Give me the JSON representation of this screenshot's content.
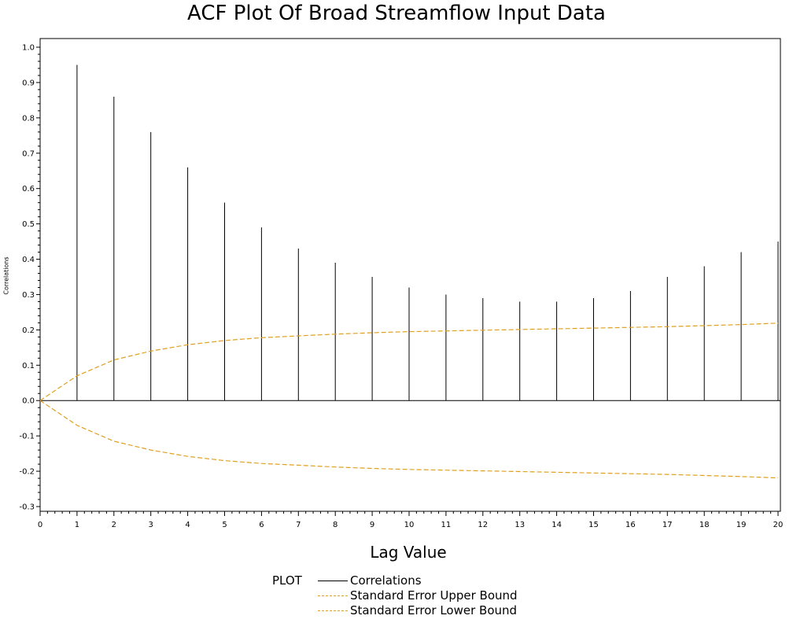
{
  "chart_data": {
    "type": "bar",
    "title": "ACF Plot Of Broad Streamflow Input Data",
    "xlabel": "Lag Value",
    "ylabel": "Correlations",
    "xlim": [
      0,
      20
    ],
    "ylim": [
      -0.3,
      1.0
    ],
    "x_ticks": [
      "0",
      "1",
      "2",
      "3",
      "4",
      "5",
      "6",
      "7",
      "8",
      "9",
      "10",
      "11",
      "12",
      "13",
      "14",
      "15",
      "16",
      "17",
      "18",
      "19",
      "20"
    ],
    "y_ticks": [
      "-0.3",
      "-0.2",
      "-0.1",
      "0.0",
      "0.1",
      "0.2",
      "0.3",
      "0.4",
      "0.5",
      "0.6",
      "0.7",
      "0.8",
      "0.9",
      "1.0"
    ],
    "grid": false,
    "legend": {
      "title": "PLOT",
      "placement": "bottom",
      "entries": [
        "Correlations",
        "Standard Error Upper Bound",
        "Standard Error Lower Bound"
      ]
    },
    "colors": {
      "correlations": "#000000",
      "bounds": "#e0a020"
    },
    "series": [
      {
        "name": "Correlations",
        "x": [
          1,
          2,
          3,
          4,
          5,
          6,
          7,
          8,
          9,
          10,
          11,
          12,
          13,
          14,
          15,
          16,
          17,
          18,
          19,
          20
        ],
        "values": [
          0.95,
          0.86,
          0.76,
          0.66,
          0.56,
          0.49,
          0.43,
          0.39,
          0.35,
          0.32,
          0.3,
          0.29,
          0.28,
          0.28,
          0.29,
          0.31,
          0.35,
          0.38,
          0.42,
          0.45
        ]
      },
      {
        "name": "Standard Error Upper Bound",
        "x": [
          0,
          1,
          2,
          3,
          4,
          5,
          6,
          7,
          8,
          9,
          10,
          11,
          12,
          13,
          14,
          15,
          16,
          17,
          18,
          19,
          20
        ],
        "values": [
          0.0,
          0.07,
          0.115,
          0.14,
          0.158,
          0.17,
          0.178,
          0.183,
          0.188,
          0.192,
          0.195,
          0.197,
          0.199,
          0.201,
          0.203,
          0.205,
          0.207,
          0.209,
          0.212,
          0.215,
          0.219
        ]
      },
      {
        "name": "Standard Error Lower Bound",
        "x": [
          0,
          1,
          2,
          3,
          4,
          5,
          6,
          7,
          8,
          9,
          10,
          11,
          12,
          13,
          14,
          15,
          16,
          17,
          18,
          19,
          20
        ],
        "values": [
          0.0,
          -0.07,
          -0.115,
          -0.14,
          -0.158,
          -0.17,
          -0.178,
          -0.183,
          -0.188,
          -0.192,
          -0.195,
          -0.197,
          -0.199,
          -0.201,
          -0.203,
          -0.205,
          -0.207,
          -0.209,
          -0.212,
          -0.215,
          -0.219
        ]
      }
    ]
  }
}
